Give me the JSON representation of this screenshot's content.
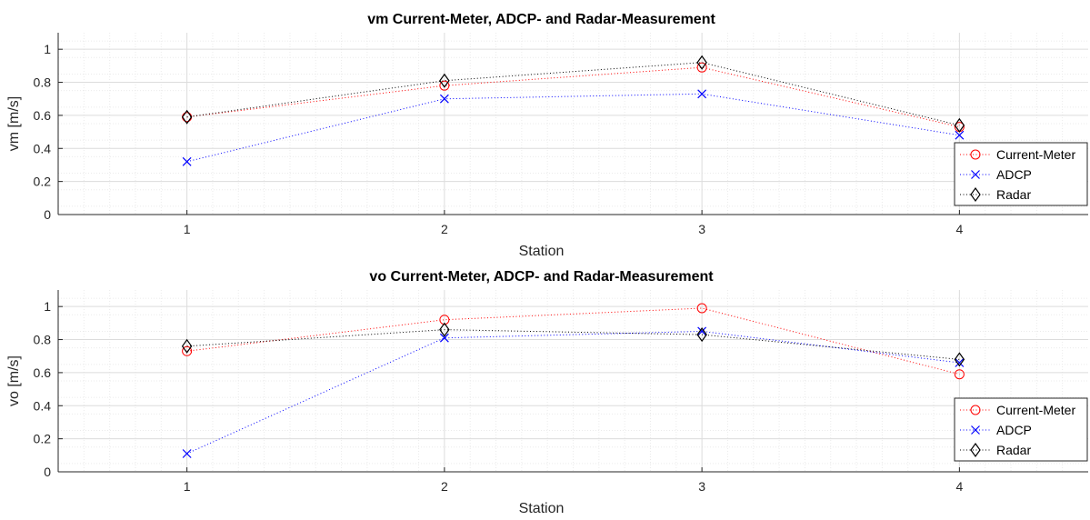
{
  "colors": {
    "current_meter": "#ff0000",
    "adcp": "#0000ff",
    "radar": "#000000",
    "grid_major": "#dcdcdc",
    "grid_minor": "#ebebeb",
    "axis": "#262626"
  },
  "chart_data": [
    {
      "type": "line",
      "title": "vm Current-Meter, ADCP- and Radar-Measurement",
      "xlabel": "Station",
      "ylabel": "vm [m/s]",
      "x": [
        1,
        2,
        3,
        4
      ],
      "xlim": [
        0.5,
        4.5
      ],
      "ylim": [
        0,
        1.1
      ],
      "xticks": [
        "1",
        "2",
        "3",
        "4"
      ],
      "yticks": [
        "0",
        "0.2",
        "0.4",
        "0.6",
        "0.8",
        "1"
      ],
      "grid": true,
      "minor_grid": true,
      "legend_position": "bottom-right",
      "series": [
        {
          "name": "Current-Meter",
          "marker": "circle",
          "line": "dotted",
          "color": "#ff0000",
          "values": [
            0.59,
            0.78,
            0.89,
            0.53
          ]
        },
        {
          "name": "ADCP",
          "marker": "x",
          "line": "dotted",
          "color": "#0000ff",
          "values": [
            0.32,
            0.7,
            0.73,
            0.48
          ]
        },
        {
          "name": "Radar",
          "marker": "diamond",
          "line": "dotted",
          "color": "#000000",
          "values": [
            0.59,
            0.81,
            0.92,
            0.54
          ]
        }
      ]
    },
    {
      "type": "line",
      "title": "vo Current-Meter, ADCP- and Radar-Measurement",
      "xlabel": "Station",
      "ylabel": "vo [m/s]",
      "x": [
        1,
        2,
        3,
        4
      ],
      "xlim": [
        0.5,
        4.5
      ],
      "ylim": [
        0,
        1.1
      ],
      "xticks": [
        "1",
        "2",
        "3",
        "4"
      ],
      "yticks": [
        "0",
        "0.2",
        "0.4",
        "0.6",
        "0.8",
        "1"
      ],
      "grid": true,
      "minor_grid": true,
      "legend_position": "bottom-right",
      "series": [
        {
          "name": "Current-Meter",
          "marker": "circle",
          "line": "dotted",
          "color": "#ff0000",
          "values": [
            0.73,
            0.92,
            0.99,
            0.59
          ]
        },
        {
          "name": "ADCP",
          "marker": "x",
          "line": "dotted",
          "color": "#0000ff",
          "values": [
            0.11,
            0.81,
            0.85,
            0.66
          ]
        },
        {
          "name": "Radar",
          "marker": "diamond",
          "line": "dotted",
          "color": "#000000",
          "values": [
            0.76,
            0.86,
            0.83,
            0.68
          ]
        }
      ]
    }
  ]
}
